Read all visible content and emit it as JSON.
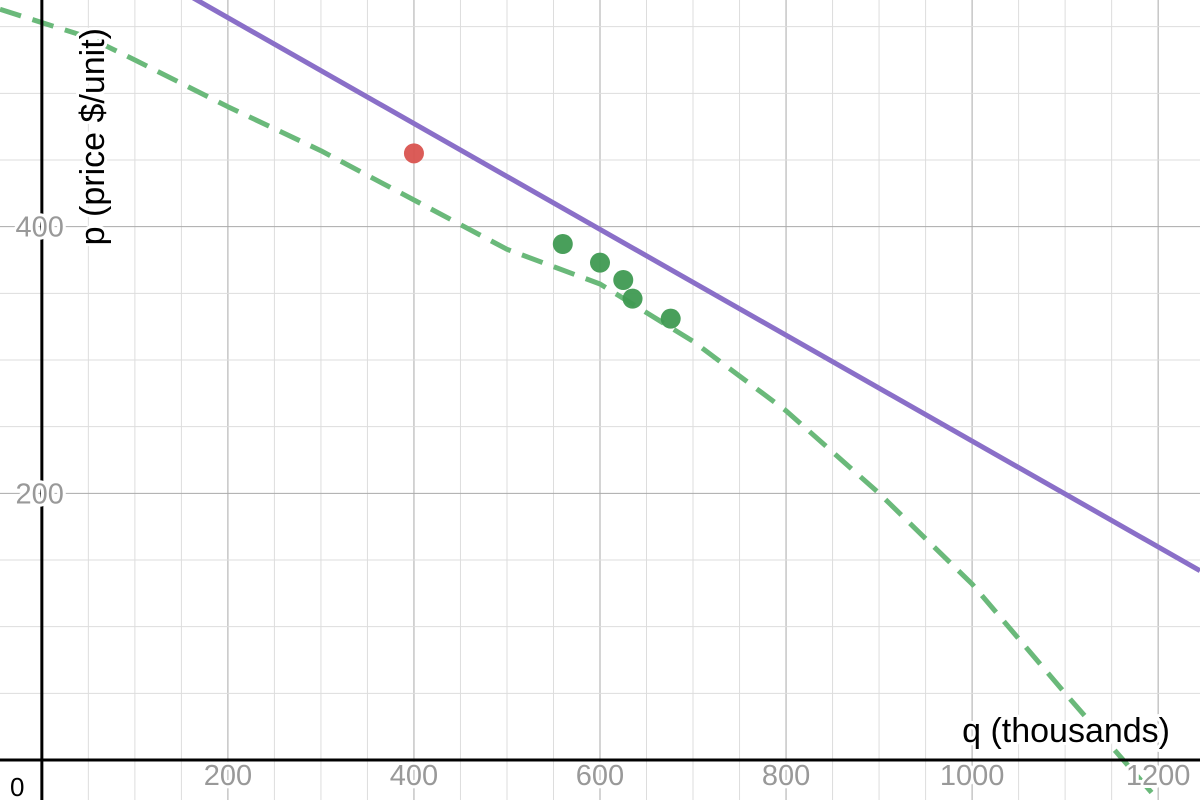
{
  "chart_data": {
    "type": "line",
    "xlabel": "q (thousands)",
    "ylabel": "p (price $/unit)",
    "origin_label": "0",
    "xlim": [
      -45,
      1245
    ],
    "ylim": [
      -30,
      570
    ],
    "grid": true,
    "x_ticks": [
      {
        "value": 200,
        "label": "200"
      },
      {
        "value": 400,
        "label": "400"
      },
      {
        "value": 600,
        "label": "600"
      },
      {
        "value": 800,
        "label": "800"
      },
      {
        "value": 1000,
        "label": "1000"
      },
      {
        "value": 1200,
        "label": "1200"
      }
    ],
    "y_ticks": [
      {
        "value": 200,
        "label": "200"
      },
      {
        "value": 400,
        "label": "400"
      }
    ],
    "minor_step_x": 50,
    "major_step_x": 200,
    "minor_step_y": 50,
    "major_step_y": 200,
    "series": [
      {
        "kind": "curve",
        "style": "dashed",
        "color": "#6ab97a",
        "x": [
          -45,
          50,
          100,
          200,
          300,
          400,
          500,
          600,
          700,
          800,
          900,
          1000,
          1100,
          1200
        ],
        "y": [
          563,
          542,
          525,
          490,
          457,
          420,
          383,
          357,
          314,
          262,
          200,
          132,
          50,
          -30
        ]
      },
      {
        "kind": "line",
        "style": "solid",
        "color": "#8a6fc8",
        "x": [
          -45,
          1245
        ],
        "y": [
          654,
          142
        ]
      },
      {
        "kind": "points",
        "color": "#3f9a52",
        "x": [
          560,
          600,
          625,
          635,
          676
        ],
        "y": [
          387,
          373,
          360,
          346,
          331
        ]
      },
      {
        "kind": "points",
        "color": "#d9534f",
        "x": [
          400
        ],
        "y": [
          455
        ]
      }
    ]
  }
}
